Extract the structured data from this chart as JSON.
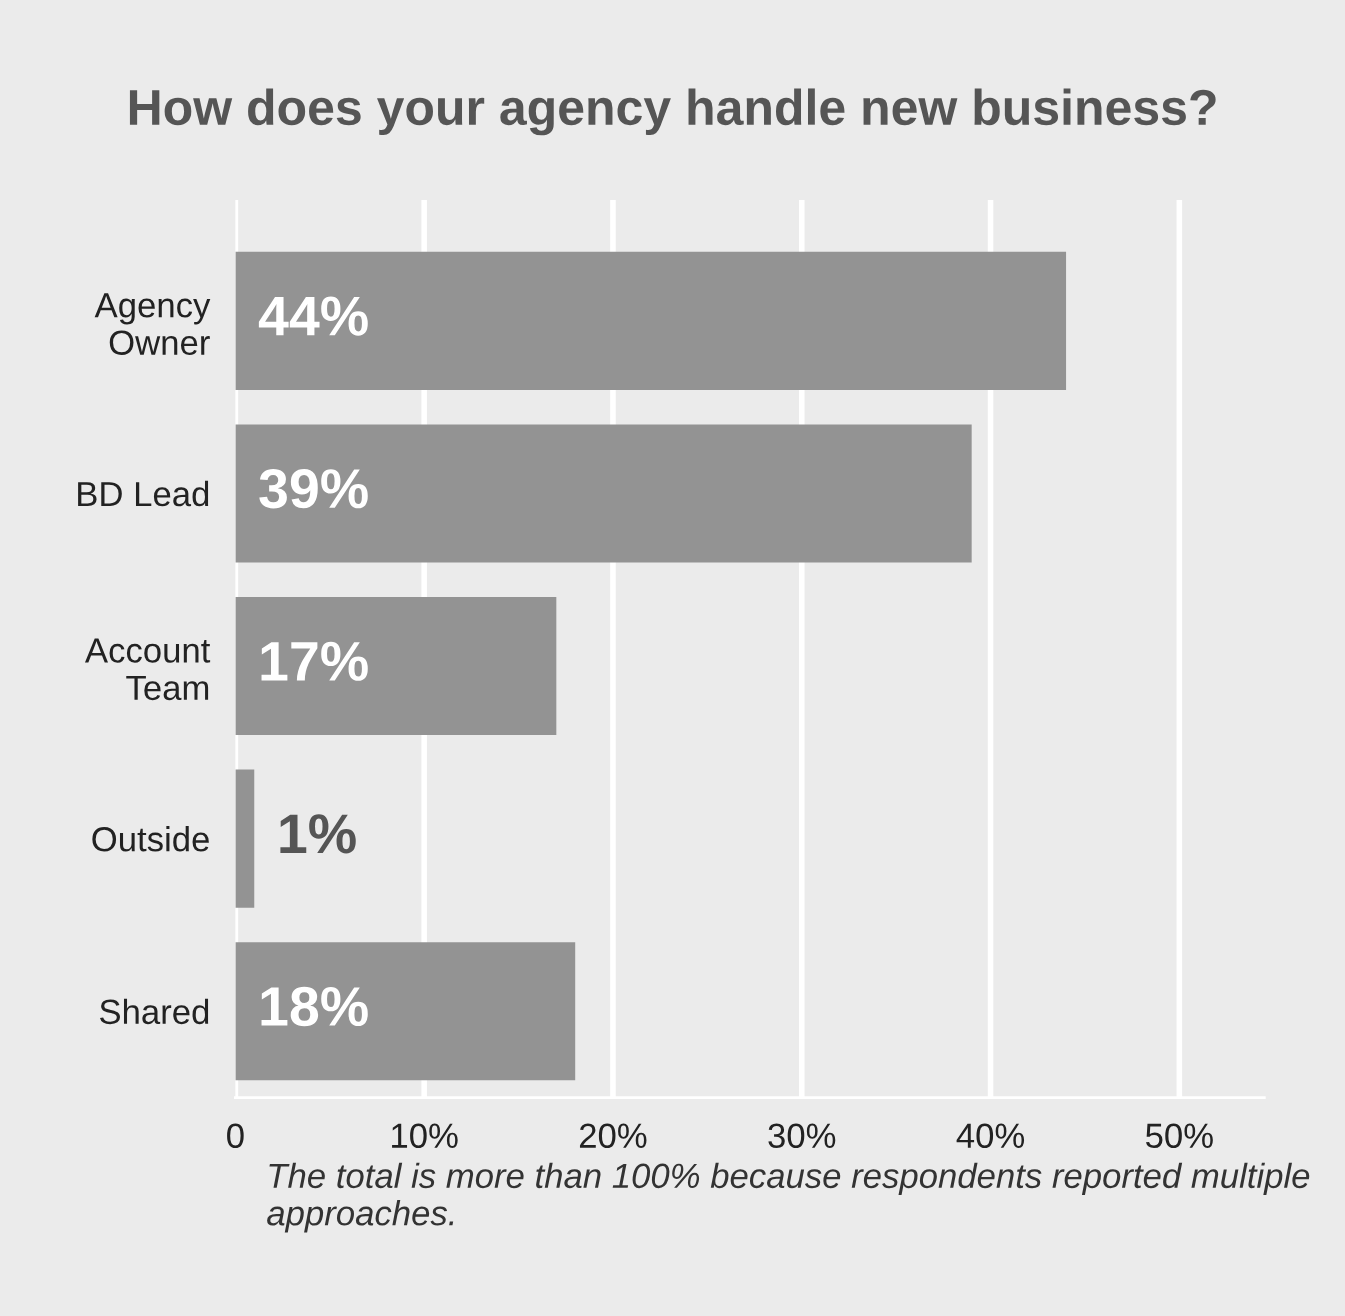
{
  "chart_data": {
    "type": "bar",
    "orientation": "horizontal",
    "title": "How does your agency handle new business?",
    "categories": [
      "Agency\nOwner",
      "BD Lead",
      "Account\nTeam",
      "Outside",
      "Shared"
    ],
    "values": [
      44,
      39,
      17,
      1,
      18
    ],
    "value_labels": [
      "44%",
      "39%",
      "17%",
      "1%",
      "18%"
    ],
    "color": "#939393",
    "xlim": [
      0,
      54.5
    ],
    "xticks": [
      0,
      {
        "value": 10,
        "label": "10%"
      },
      {
        "value": 20,
        "label": "20%"
      },
      {
        "value": 30,
        "label": "30%"
      },
      {
        "value": 40,
        "label": "40%"
      },
      {
        "value": 50,
        "label": "50%"
      }
    ],
    "grid": "x",
    "annotations": [
      "The total is more than 100% because respondents reported multiple approaches."
    ]
  }
}
